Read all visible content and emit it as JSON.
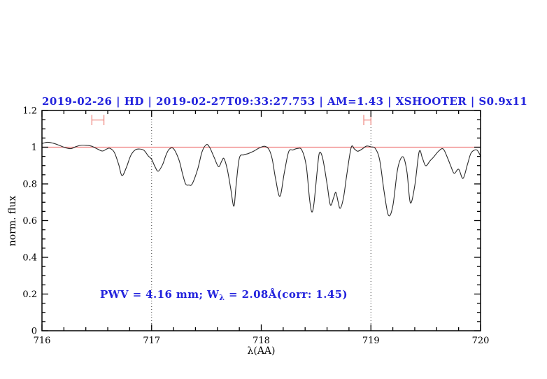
{
  "colors": {
    "background": "#ffffff",
    "title_blue": "#2222dd",
    "annotation_blue": "#2222dd",
    "reference_red": "#f08080",
    "marker_red": "#ef8b84",
    "spectrum_black": "#2a2a2a",
    "frame_black": "#000000",
    "dotted_guide": "#3a3a3a"
  },
  "annotation": {
    "prefix": "PWV = 4.16 mm; W",
    "subscript": "λ",
    "suffix": " = 2.08Å(corr: 1.45)"
  },
  "chart_data": {
    "type": "line",
    "title": "2019-02-26 | HD | 2019-02-27T09:33:27.753 | AM=1.43 | XSHOOTER | S0.9x11",
    "xlabel": "λ(AA)",
    "ylabel": "norm. flux",
    "xlim": [
      716,
      720
    ],
    "ylim": [
      0,
      1.2
    ],
    "x_major_ticks": [
      716,
      717,
      718,
      719,
      720
    ],
    "x_tick_labels": [
      "716",
      "717",
      "718",
      "719",
      "720"
    ],
    "x_minor_step": 0.2,
    "y_major_ticks": [
      0,
      0.2,
      0.4,
      0.6,
      0.8,
      1,
      1.2
    ],
    "y_tick_labels": [
      "0",
      "0.2",
      "0.4",
      "0.6",
      "0.8",
      "1",
      "1.2"
    ],
    "y_minor_step": 0.05,
    "grid": false,
    "legend": null,
    "dotted_vlines": [
      717,
      719
    ],
    "reference_line_y": 1.0,
    "range_markers": [
      {
        "x_start": 716.455,
        "x_end": 716.565,
        "y": 1.148,
        "cap_half_height": 0.028
      },
      {
        "x_start": 718.935,
        "x_end": 719.0,
        "y": 1.148,
        "cap_half_height": 0.028
      }
    ],
    "series": [
      {
        "name": "telluric-spectrum",
        "type": "line",
        "points": [
          [
            716.0,
            1.02
          ],
          [
            716.05,
            1.027
          ],
          [
            716.1,
            1.022
          ],
          [
            716.15,
            1.012
          ],
          [
            716.2,
            1.0
          ],
          [
            716.26,
            0.992
          ],
          [
            716.31,
            1.003
          ],
          [
            716.36,
            1.011
          ],
          [
            716.41,
            1.01
          ],
          [
            716.45,
            1.006
          ],
          [
            716.5,
            0.992
          ],
          [
            716.55,
            0.979
          ],
          [
            716.59,
            0.99
          ],
          [
            716.62,
            0.994
          ],
          [
            716.66,
            0.972
          ],
          [
            716.7,
            0.905
          ],
          [
            716.73,
            0.845
          ],
          [
            716.77,
            0.89
          ],
          [
            716.81,
            0.955
          ],
          [
            716.85,
            0.985
          ],
          [
            716.89,
            0.99
          ],
          [
            716.93,
            0.983
          ],
          [
            716.97,
            0.952
          ],
          [
            717.0,
            0.934
          ],
          [
            717.03,
            0.895
          ],
          [
            717.06,
            0.869
          ],
          [
            717.1,
            0.905
          ],
          [
            717.13,
            0.955
          ],
          [
            717.16,
            0.989
          ],
          [
            717.2,
            0.992
          ],
          [
            717.25,
            0.93
          ],
          [
            717.28,
            0.86
          ],
          [
            717.31,
            0.8
          ],
          [
            717.34,
            0.794
          ],
          [
            717.37,
            0.8
          ],
          [
            717.42,
            0.88
          ],
          [
            717.46,
            0.975
          ],
          [
            717.5,
            1.014
          ],
          [
            717.53,
            0.998
          ],
          [
            717.57,
            0.945
          ],
          [
            717.61,
            0.894
          ],
          [
            717.64,
            0.925
          ],
          [
            717.66,
            0.938
          ],
          [
            717.69,
            0.88
          ],
          [
            717.72,
            0.78
          ],
          [
            717.75,
            0.678
          ],
          [
            717.77,
            0.79
          ],
          [
            717.8,
            0.94
          ],
          [
            717.84,
            0.958
          ],
          [
            717.88,
            0.965
          ],
          [
            717.93,
            0.978
          ],
          [
            717.98,
            0.995
          ],
          [
            718.03,
            1.005
          ],
          [
            718.07,
            0.988
          ],
          [
            718.1,
            0.935
          ],
          [
            718.13,
            0.83
          ],
          [
            718.17,
            0.732
          ],
          [
            718.21,
            0.86
          ],
          [
            718.25,
            0.975
          ],
          [
            718.29,
            0.985
          ],
          [
            718.33,
            0.993
          ],
          [
            718.37,
            0.985
          ],
          [
            718.41,
            0.9
          ],
          [
            718.44,
            0.72
          ],
          [
            718.46,
            0.648
          ],
          [
            718.48,
            0.69
          ],
          [
            718.51,
            0.87
          ],
          [
            718.53,
            0.968
          ],
          [
            718.56,
            0.94
          ],
          [
            718.6,
            0.8
          ],
          [
            718.63,
            0.686
          ],
          [
            718.66,
            0.725
          ],
          [
            718.68,
            0.754
          ],
          [
            718.7,
            0.705
          ],
          [
            718.72,
            0.667
          ],
          [
            718.75,
            0.725
          ],
          [
            718.78,
            0.85
          ],
          [
            718.82,
            0.998
          ],
          [
            718.85,
            0.99
          ],
          [
            718.88,
            0.978
          ],
          [
            718.92,
            0.99
          ],
          [
            718.96,
            1.006
          ],
          [
            719.0,
            1.002
          ],
          [
            719.04,
            0.993
          ],
          [
            719.08,
            0.93
          ],
          [
            719.12,
            0.76
          ],
          [
            719.16,
            0.629
          ],
          [
            719.2,
            0.68
          ],
          [
            719.24,
            0.868
          ],
          [
            719.27,
            0.935
          ],
          [
            719.3,
            0.942
          ],
          [
            719.33,
            0.86
          ],
          [
            719.36,
            0.697
          ],
          [
            719.4,
            0.79
          ],
          [
            719.44,
            0.975
          ],
          [
            719.47,
            0.94
          ],
          [
            719.5,
            0.899
          ],
          [
            719.54,
            0.926
          ],
          [
            719.57,
            0.945
          ],
          [
            719.62,
            0.98
          ],
          [
            719.66,
            0.99
          ],
          [
            719.7,
            0.94
          ],
          [
            719.73,
            0.895
          ],
          [
            719.76,
            0.857
          ],
          [
            719.8,
            0.88
          ],
          [
            719.84,
            0.83
          ],
          [
            719.88,
            0.905
          ],
          [
            719.91,
            0.964
          ],
          [
            719.94,
            0.983
          ],
          [
            719.97,
            0.983
          ],
          [
            720.0,
            0.952
          ]
        ]
      }
    ]
  }
}
